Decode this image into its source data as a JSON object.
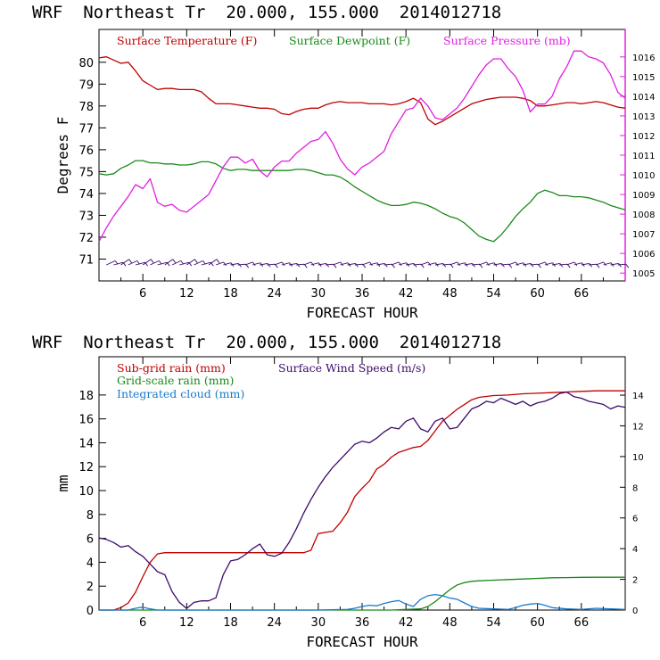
{
  "chart_data": [
    {
      "type": "line",
      "title": "WRF  Northeast Tr  20.000, 155.000  2014012718",
      "xlabel": "FORECAST HOUR",
      "ylabel": "Degrees F",
      "xlim": [
        0,
        72
      ],
      "x_ticks": [
        6,
        12,
        18,
        24,
        30,
        36,
        42,
        48,
        54,
        60,
        66
      ],
      "ylim": [
        70,
        81.5
      ],
      "y_ticks": [
        71,
        72,
        73,
        74,
        75,
        76,
        77,
        78,
        79,
        80
      ],
      "y2lim": [
        1004.6,
        1017.4
      ],
      "y2_ticks": [
        1005,
        1006,
        1007,
        1008,
        1009,
        1010,
        1011,
        1012,
        1013,
        1014,
        1015,
        1016
      ],
      "y2_color": "#e020e0",
      "series": [
        {
          "name": "Surface Temperature (F)",
          "color": "#c00000",
          "axis": "left",
          "x": [
            0,
            1,
            2,
            3,
            4,
            5,
            6,
            7,
            8,
            9,
            10,
            11,
            12,
            13,
            14,
            15,
            16,
            17,
            18,
            19,
            20,
            21,
            22,
            23,
            24,
            25,
            26,
            27,
            28,
            29,
            30,
            31,
            32,
            33,
            34,
            35,
            36,
            37,
            38,
            39,
            40,
            41,
            42,
            43,
            44,
            45,
            46,
            47,
            48,
            49,
            50,
            51,
            52,
            53,
            54,
            55,
            56,
            57,
            58,
            59,
            60,
            61,
            62,
            63,
            64,
            65,
            66,
            67,
            68,
            69,
            70,
            71,
            72
          ],
          "values": [
            80.2,
            80.25,
            80.1,
            79.95,
            80.0,
            79.6,
            79.15,
            78.95,
            78.75,
            78.8,
            78.8,
            78.75,
            78.75,
            78.75,
            78.65,
            78.35,
            78.1,
            78.1,
            78.1,
            78.05,
            78.0,
            77.95,
            77.9,
            77.9,
            77.85,
            77.65,
            77.6,
            77.75,
            77.85,
            77.9,
            77.9,
            78.05,
            78.15,
            78.2,
            78.15,
            78.15,
            78.15,
            78.1,
            78.1,
            78.1,
            78.05,
            78.1,
            78.2,
            78.35,
            78.15,
            77.4,
            77.15,
            77.3,
            77.5,
            77.7,
            77.9,
            78.1,
            78.2,
            78.3,
            78.35,
            78.4,
            78.4,
            78.4,
            78.35,
            78.25,
            78.0,
            78.0,
            78.05,
            78.1,
            78.15,
            78.15,
            78.1,
            78.15,
            78.2,
            78.15,
            78.05,
            77.95,
            77.9
          ]
        },
        {
          "name": "Surface Dewpoint (F)",
          "color": "#1a8a1a",
          "axis": "left",
          "x": [
            0,
            1,
            2,
            3,
            4,
            5,
            6,
            7,
            8,
            9,
            10,
            11,
            12,
            13,
            14,
            15,
            16,
            17,
            18,
            19,
            20,
            21,
            22,
            23,
            24,
            25,
            26,
            27,
            28,
            29,
            30,
            31,
            32,
            33,
            34,
            35,
            36,
            37,
            38,
            39,
            40,
            41,
            42,
            43,
            44,
            45,
            46,
            47,
            48,
            49,
            50,
            51,
            52,
            53,
            54,
            55,
            56,
            57,
            58,
            59,
            60,
            61,
            62,
            63,
            64,
            65,
            66,
            67,
            68,
            69,
            70,
            71,
            72
          ],
          "values": [
            74.9,
            74.85,
            74.9,
            75.15,
            75.3,
            75.5,
            75.5,
            75.4,
            75.4,
            75.35,
            75.35,
            75.3,
            75.3,
            75.35,
            75.45,
            75.45,
            75.35,
            75.15,
            75.05,
            75.1,
            75.1,
            75.05,
            75.05,
            75.05,
            75.05,
            75.05,
            75.05,
            75.1,
            75.1,
            75.05,
            74.95,
            74.85,
            74.85,
            74.75,
            74.55,
            74.3,
            74.1,
            73.9,
            73.7,
            73.55,
            73.45,
            73.45,
            73.5,
            73.6,
            73.55,
            73.45,
            73.3,
            73.1,
            72.95,
            72.85,
            72.65,
            72.35,
            72.05,
            71.9,
            71.8,
            72.1,
            72.5,
            72.95,
            73.3,
            73.6,
            74.0,
            74.15,
            74.05,
            73.9,
            73.9,
            73.85,
            73.85,
            73.8,
            73.7,
            73.6,
            73.45,
            73.35,
            73.25
          ]
        },
        {
          "name": "Surface Pressure (mb)",
          "color": "#e020e0",
          "axis": "right",
          "x": [
            0,
            1,
            2,
            3,
            4,
            5,
            6,
            7,
            8,
            9,
            10,
            11,
            12,
            13,
            14,
            15,
            16,
            17,
            18,
            19,
            20,
            21,
            22,
            23,
            24,
            25,
            26,
            27,
            28,
            29,
            30,
            31,
            32,
            33,
            34,
            35,
            36,
            37,
            38,
            39,
            40,
            41,
            42,
            43,
            44,
            45,
            46,
            47,
            48,
            49,
            50,
            51,
            52,
            53,
            54,
            55,
            56,
            57,
            58,
            59,
            60,
            61,
            62,
            63,
            64,
            65,
            66,
            67,
            68,
            69,
            70,
            71,
            72
          ],
          "values": [
            1006.6,
            1007.3,
            1007.9,
            1008.4,
            1008.9,
            1009.5,
            1009.3,
            1009.8,
            1008.6,
            1008.4,
            1008.5,
            1008.2,
            1008.1,
            1008.4,
            1008.7,
            1009.0,
            1009.7,
            1010.4,
            1010.9,
            1010.9,
            1010.6,
            1010.8,
            1010.2,
            1009.9,
            1010.4,
            1010.7,
            1010.7,
            1011.1,
            1011.4,
            1011.7,
            1011.8,
            1012.2,
            1011.6,
            1010.8,
            1010.3,
            1010.0,
            1010.4,
            1010.6,
            1010.9,
            1011.2,
            1012.1,
            1012.7,
            1013.3,
            1013.4,
            1013.9,
            1013.5,
            1012.9,
            1012.8,
            1013.1,
            1013.4,
            1013.9,
            1014.5,
            1015.1,
            1015.6,
            1015.9,
            1015.9,
            1015.4,
            1015.0,
            1014.3,
            1013.2,
            1013.6,
            1013.6,
            1014.0,
            1014.9,
            1015.5,
            1016.3,
            1016.3,
            1016.0,
            1015.9,
            1015.7,
            1015.1,
            1014.2,
            1013.9
          ]
        }
      ],
      "wind_barbs_note": "wind barbs along bottom of panel"
    },
    {
      "type": "line",
      "title": "WRF  Northeast Tr  20.000, 155.000  2014012718",
      "xlabel": "FORECAST HOUR",
      "ylabel": "mm",
      "xlim": [
        0,
        72
      ],
      "x_ticks": [
        6,
        12,
        18,
        24,
        30,
        36,
        42,
        48,
        54,
        60,
        66
      ],
      "ylim": [
        0,
        21.2
      ],
      "y_ticks": [
        0,
        2,
        4,
        6,
        8,
        10,
        12,
        14,
        16,
        18
      ],
      "y2lim": [
        0,
        16.5
      ],
      "y2_ticks": [
        0,
        2,
        4,
        6,
        8,
        10,
        12,
        14
      ],
      "series": [
        {
          "name": "Sub-grid rain (mm)",
          "color": "#c00000",
          "axis": "left",
          "x": [
            0,
            2,
            3,
            4,
            5,
            6,
            7,
            8,
            9,
            12,
            20,
            25,
            28,
            29,
            30,
            31,
            32,
            33,
            34,
            35,
            36,
            37,
            38,
            39,
            40,
            41,
            42,
            43,
            44,
            45,
            46,
            47,
            48,
            49,
            50,
            51,
            52,
            54,
            56,
            58,
            60,
            62,
            64,
            66,
            68,
            70,
            72
          ],
          "values": [
            0,
            0,
            0.2,
            0.6,
            1.5,
            2.8,
            4.0,
            4.7,
            4.8,
            4.8,
            4.8,
            4.8,
            4.8,
            5.0,
            6.4,
            6.5,
            6.6,
            7.3,
            8.2,
            9.5,
            10.2,
            10.8,
            11.8,
            12.2,
            12.8,
            13.2,
            13.4,
            13.6,
            13.7,
            14.2,
            15.0,
            15.8,
            16.3,
            16.8,
            17.2,
            17.6,
            17.8,
            17.95,
            18.0,
            18.1,
            18.15,
            18.2,
            18.25,
            18.3,
            18.35,
            18.35,
            18.35
          ]
        },
        {
          "name": "Grid-scale rain (mm)",
          "color": "#1a8a1a",
          "axis": "left",
          "x": [
            0,
            40,
            42,
            44,
            45,
            46,
            47,
            48,
            49,
            50,
            51,
            52,
            54,
            56,
            58,
            60,
            62,
            64,
            66,
            68,
            70,
            72
          ],
          "values": [
            0,
            0,
            0.05,
            0.1,
            0.3,
            0.7,
            1.2,
            1.7,
            2.1,
            2.3,
            2.4,
            2.45,
            2.5,
            2.55,
            2.6,
            2.65,
            2.7,
            2.72,
            2.74,
            2.75,
            2.75,
            2.75
          ]
        },
        {
          "name": "Integrated cloud (mm)",
          "color": "#1a7acc",
          "axis": "left",
          "x": [
            0,
            4,
            5,
            6,
            7,
            8,
            12,
            30,
            34,
            35,
            36,
            37,
            38,
            39,
            40,
            41,
            42,
            43,
            44,
            45,
            46,
            47,
            48,
            49,
            50,
            51,
            52,
            54,
            56,
            57,
            58,
            59,
            60,
            61,
            62,
            64,
            66,
            68,
            70,
            72
          ],
          "values": [
            0,
            0,
            0.15,
            0.25,
            0.1,
            0,
            0,
            0,
            0.05,
            0.15,
            0.3,
            0.4,
            0.35,
            0.55,
            0.7,
            0.8,
            0.5,
            0.3,
            0.9,
            1.2,
            1.3,
            1.2,
            1.0,
            0.9,
            0.6,
            0.3,
            0.15,
            0.1,
            0.05,
            0.2,
            0.4,
            0.5,
            0.55,
            0.4,
            0.2,
            0.1,
            0.05,
            0.15,
            0.1,
            0.05
          ]
        },
        {
          "name": "Surface Wind Speed (m/s)",
          "color": "#3d0a6b",
          "axis": "right",
          "x": [
            0,
            1,
            2,
            3,
            4,
            5,
            6,
            7,
            8,
            9,
            10,
            11,
            12,
            13,
            14,
            15,
            16,
            17,
            18,
            19,
            20,
            21,
            22,
            23,
            24,
            25,
            26,
            27,
            28,
            29,
            30,
            31,
            32,
            33,
            34,
            35,
            36,
            37,
            38,
            39,
            40,
            41,
            42,
            43,
            44,
            45,
            46,
            47,
            48,
            49,
            50,
            51,
            52,
            53,
            54,
            55,
            56,
            57,
            58,
            59,
            60,
            61,
            62,
            63,
            64,
            65,
            66,
            67,
            68,
            69,
            70,
            71,
            72
          ],
          "values": [
            4.7,
            4.6,
            4.4,
            4.1,
            4.2,
            3.8,
            3.5,
            3.0,
            2.5,
            2.3,
            1.2,
            0.5,
            0.1,
            0.5,
            0.6,
            0.6,
            0.8,
            2.3,
            3.2,
            3.3,
            3.6,
            4.0,
            4.3,
            3.6,
            3.5,
            3.7,
            4.4,
            5.3,
            6.3,
            7.2,
            8.0,
            8.7,
            9.3,
            9.8,
            10.3,
            10.8,
            11.0,
            10.9,
            11.2,
            11.6,
            11.9,
            11.8,
            12.3,
            12.5,
            11.8,
            11.6,
            12.3,
            12.5,
            11.8,
            11.9,
            12.5,
            13.1,
            13.3,
            13.6,
            13.5,
            13.8,
            13.6,
            13.4,
            13.6,
            13.3,
            13.5,
            13.6,
            13.8,
            14.1,
            14.2,
            13.9,
            13.8,
            13.6,
            13.5,
            13.4,
            13.1,
            13.3,
            13.2
          ]
        }
      ]
    }
  ]
}
